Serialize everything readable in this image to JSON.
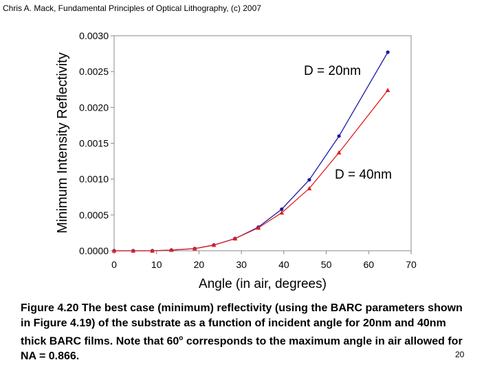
{
  "header": {
    "text": "Chris A. Mack, Fundamental Principles of Optical Lithography, (c) 2007"
  },
  "caption": {
    "part1": "Figure 4.20  The best case (minimum) reflectivity (using the BARC parameters shown in Figure 4.19) of the substrate as a function of incident angle for 20nm and 40nm thick BARC films.  Note that 60",
    "sup": "o",
    "part2": " corresponds to the maximum angle in air allowed for NA = 0.866."
  },
  "page_number": "20",
  "chart_data": {
    "type": "line",
    "xlabel": "Angle (in air, degrees)",
    "ylabel": "Minimum Intensity Reflectivity",
    "xlim": [
      0,
      70
    ],
    "ylim": [
      0,
      0.003
    ],
    "x_ticks": [
      "0",
      "10",
      "20",
      "30",
      "40",
      "50",
      "60",
      "70"
    ],
    "y_ticks": [
      "0.0000",
      "0.0005",
      "0.0010",
      "0.0015",
      "0.0020",
      "0.0025",
      "0.0030"
    ],
    "grid": false,
    "series": [
      {
        "name": "D = 20nm",
        "color": "#1a1aa8",
        "marker": "circle",
        "x": [
          0,
          4.5,
          9,
          13.5,
          19,
          23.5,
          28.5,
          34,
          39.5,
          46,
          53,
          64.5
        ],
        "values": [
          0.0,
          0.0,
          0.0,
          1e-05,
          3e-05,
          8e-05,
          0.00017,
          0.00033,
          0.00058,
          0.00099,
          0.0016,
          0.00277
        ]
      },
      {
        "name": "D = 40nm",
        "color": "#e02020",
        "marker": "triangle",
        "x": [
          0,
          4.5,
          9,
          13.5,
          19,
          23.5,
          28.5,
          34,
          39.5,
          46,
          53,
          64.5
        ],
        "values": [
          0.0,
          0.0,
          0.0,
          1e-05,
          3e-05,
          8e-05,
          0.00017,
          0.00032,
          0.00053,
          0.00087,
          0.00137,
          0.00224
        ]
      }
    ],
    "annotations": [
      "D = 20nm",
      "D = 40nm"
    ]
  }
}
